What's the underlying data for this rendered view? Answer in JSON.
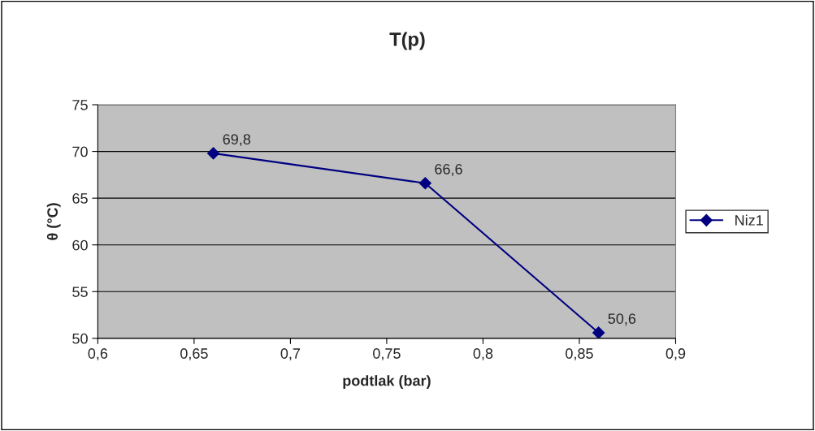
{
  "chart_data": {
    "type": "line",
    "title": "T(p)",
    "xlabel": "podtlak (bar)",
    "ylabel": "θ (°C)",
    "series": [
      {
        "name": "Niz1",
        "color": "#000080",
        "x": [
          0.66,
          0.77,
          0.86
        ],
        "values": [
          69.8,
          66.6,
          50.6
        ],
        "value_labels": [
          "69,8",
          "66,6",
          "50,6"
        ]
      }
    ],
    "xlim": [
      0.6,
      0.9
    ],
    "xticks": [
      {
        "value": 0.6,
        "label": "0,6"
      },
      {
        "value": 0.65,
        "label": "0,65"
      },
      {
        "value": 0.7,
        "label": "0,7"
      },
      {
        "value": 0.75,
        "label": "0,75"
      },
      {
        "value": 0.8,
        "label": "0,8"
      },
      {
        "value": 0.85,
        "label": "0,85"
      },
      {
        "value": 0.9,
        "label": "0,9"
      }
    ],
    "ylim": [
      50,
      75
    ],
    "yticks": [
      50,
      55,
      60,
      65,
      70,
      75
    ],
    "grid": "y",
    "legend": "right",
    "marker": "diamond",
    "line_style": "solid"
  }
}
